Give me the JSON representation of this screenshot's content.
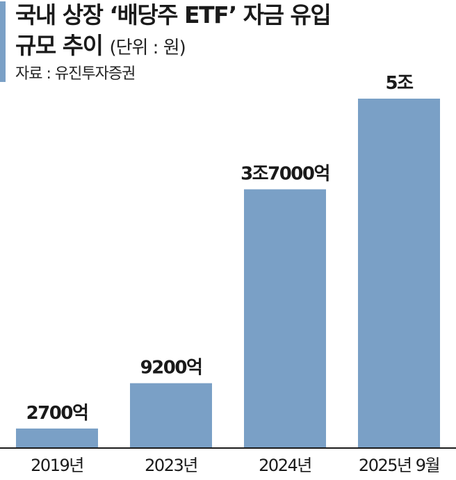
{
  "header": {
    "title_line1": "국내 상장 ‘배당주 ETF’ 자금 유입",
    "title_line2": "규모 추이",
    "unit": "(단위 : 원)",
    "source": "자료 : 유진투자증권"
  },
  "chart_data": {
    "type": "bar",
    "title": "국내 상장 ‘배당주 ETF’ 자금 유입 규모 추이",
    "unit": "(단위 : 원)",
    "source": "자료 : 유진투자증권",
    "categories": [
      "2019년",
      "2023년",
      "2024년",
      "2025년 9월"
    ],
    "values": [
      2700,
      9200,
      37000,
      50000
    ],
    "value_unit": "억원",
    "data_labels": [
      "2700억",
      "9200억",
      "3조7000억",
      "5조"
    ],
    "xlabel": "",
    "ylabel": "",
    "ylim": [
      0,
      50000
    ],
    "grid": false,
    "legend": "none",
    "bar_color": "#7aa0c6"
  }
}
